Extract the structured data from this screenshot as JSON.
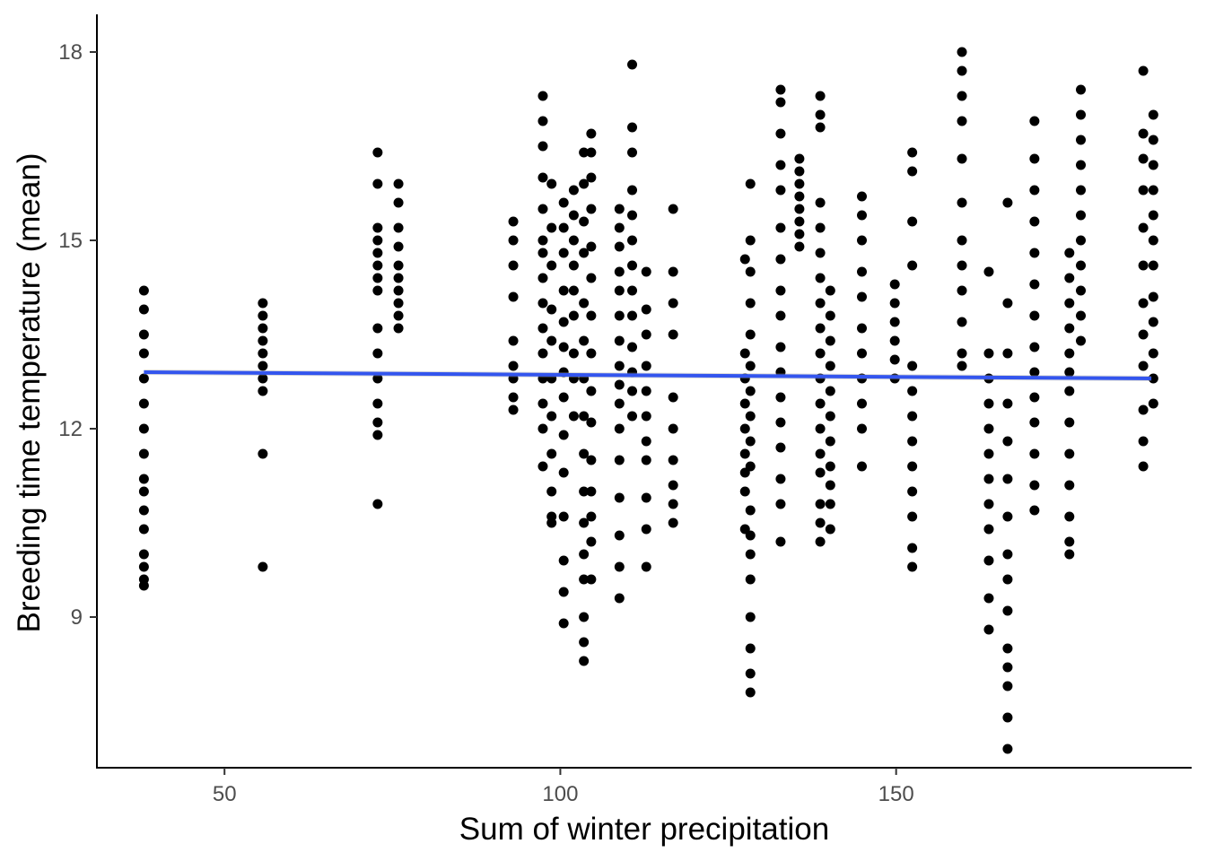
{
  "chart_data": {
    "type": "scatter",
    "title": "",
    "xlabel": "Sum of winter precipitation",
    "ylabel": "Breeding time temperature (mean)",
    "xlim": [
      31,
      194
    ],
    "ylim": [
      6.6,
      18.6
    ],
    "x_ticks": [
      50,
      100,
      150
    ],
    "x_tick_labels": [
      "50",
      "100",
      "150"
    ],
    "y_ticks": [
      9,
      12,
      15,
      18
    ],
    "y_tick_labels": [
      "9",
      "12",
      "15",
      "18"
    ],
    "grid": false,
    "legend": "none",
    "point_color": "#000000",
    "trend_line": {
      "method": "linear",
      "color": "#3355ee",
      "x": [
        38,
        188
      ],
      "y": [
        12.9,
        12.8
      ]
    },
    "groups": [
      {
        "x": 38.0,
        "y": [
          14.2,
          13.9,
          13.5,
          13.2,
          12.8,
          12.4,
          12.0,
          11.6,
          11.2,
          11.0,
          10.7,
          10.4,
          10.0,
          9.8,
          9.6,
          9.5
        ]
      },
      {
        "x": 55.7,
        "y": [
          14.0,
          13.8,
          13.6,
          13.4,
          13.2,
          13.0,
          12.8,
          12.6,
          11.6,
          9.8
        ]
      },
      {
        "x": 72.8,
        "y": [
          16.4,
          15.9,
          15.2,
          15.0,
          14.8,
          14.6,
          14.4,
          14.2,
          13.6,
          13.2,
          12.8,
          12.4,
          12.1,
          11.9,
          10.8
        ]
      },
      {
        "x": 75.9,
        "y": [
          15.9,
          15.6,
          15.2,
          14.9,
          14.6,
          14.4,
          14.2,
          14.0,
          13.8,
          13.6
        ]
      },
      {
        "x": 93.0,
        "y": [
          15.3,
          15.0,
          14.6,
          14.1,
          13.4,
          13.0,
          12.8,
          12.5,
          12.3
        ]
      },
      {
        "x": 97.4,
        "y": [
          17.3,
          16.9,
          16.5,
          16.0,
          15.5,
          15.0,
          14.8,
          14.4,
          14.0,
          13.6,
          13.2,
          12.8,
          12.4,
          12.0,
          11.4
        ]
      },
      {
        "x": 98.7,
        "y": [
          15.9,
          15.2,
          14.6,
          13.9,
          13.4,
          12.8,
          12.2,
          11.6,
          11.0,
          10.6,
          10.5
        ]
      },
      {
        "x": 100.5,
        "y": [
          15.6,
          15.2,
          14.8,
          14.2,
          13.7,
          13.3,
          12.9,
          12.5,
          11.9,
          11.3,
          10.6,
          9.9,
          9.4,
          8.9
        ]
      },
      {
        "x": 102.0,
        "y": [
          15.8,
          15.4,
          15.0,
          14.6,
          14.2,
          13.8,
          13.2,
          12.8,
          12.2
        ]
      },
      {
        "x": 103.5,
        "y": [
          16.4,
          15.9,
          15.3,
          14.8,
          14.0,
          13.4,
          12.8,
          12.2,
          11.6,
          11.0,
          10.5,
          10.0,
          9.6,
          9.0,
          8.6,
          8.3
        ]
      },
      {
        "x": 104.6,
        "y": [
          16.7,
          16.4,
          16.0,
          15.5,
          14.9,
          14.4,
          13.8,
          13.2,
          12.6,
          12.1,
          11.5,
          11.0,
          10.6,
          10.2,
          9.6
        ]
      },
      {
        "x": 108.8,
        "y": [
          15.5,
          15.2,
          14.9,
          14.5,
          14.2,
          13.8,
          13.4,
          13.0,
          12.7,
          12.4,
          12.0,
          11.5,
          10.9,
          10.3,
          9.8,
          9.3
        ]
      },
      {
        "x": 110.7,
        "y": [
          17.8,
          16.8,
          16.4,
          15.8,
          15.4,
          15.0,
          14.6,
          14.2,
          13.8,
          13.3,
          12.9,
          12.6,
          12.2
        ]
      },
      {
        "x": 112.8,
        "y": [
          14.5,
          13.9,
          13.5,
          13.0,
          12.6,
          12.2,
          11.8,
          11.5,
          10.9,
          10.4,
          9.8
        ]
      },
      {
        "x": 116.8,
        "y": [
          15.5,
          14.5,
          14.0,
          13.5,
          12.5,
          12.0,
          11.5,
          11.1,
          10.8,
          10.5
        ]
      },
      {
        "x": 127.5,
        "y": [
          14.7,
          13.2,
          12.8,
          12.4,
          12.0,
          11.6,
          11.3,
          11.0,
          10.4
        ]
      },
      {
        "x": 128.3,
        "y": [
          15.9,
          15.0,
          14.5,
          14.0,
          13.5,
          13.0,
          12.6,
          12.2,
          11.8,
          11.4,
          10.7,
          10.3,
          10.0,
          9.6,
          9.0,
          8.5,
          8.1,
          7.8
        ]
      },
      {
        "x": 132.8,
        "y": [
          17.4,
          17.2,
          16.7,
          16.2,
          15.8,
          15.2,
          14.7,
          14.2,
          13.8,
          13.3,
          12.9,
          12.5,
          12.1,
          11.7,
          11.2,
          10.8,
          10.2
        ]
      },
      {
        "x": 135.6,
        "y": [
          16.3,
          16.1,
          15.9,
          15.7,
          15.5,
          15.3,
          15.1,
          14.9
        ]
      },
      {
        "x": 138.7,
        "y": [
          17.3,
          17.0,
          16.8,
          15.6,
          15.2,
          14.8,
          14.4,
          14.0,
          13.6,
          13.2,
          12.8,
          12.4,
          12.0,
          11.6,
          11.3,
          10.8,
          10.5,
          10.2
        ]
      },
      {
        "x": 140.2,
        "y": [
          14.2,
          13.8,
          13.4,
          13.0,
          12.6,
          12.2,
          11.8,
          11.4,
          11.1,
          10.8,
          10.4
        ]
      },
      {
        "x": 144.9,
        "y": [
          15.7,
          15.4,
          15.0,
          14.5,
          14.1,
          13.6,
          13.2,
          12.8,
          12.4,
          12.0,
          11.4
        ]
      },
      {
        "x": 149.8,
        "y": [
          14.3,
          14.0,
          13.7,
          13.4,
          13.1,
          12.8
        ]
      },
      {
        "x": 152.4,
        "y": [
          16.4,
          16.1,
          15.3,
          14.6,
          13.0,
          12.6,
          12.2,
          11.8,
          11.4,
          11.0,
          10.6,
          10.1,
          9.8
        ]
      },
      {
        "x": 159.8,
        "y": [
          18.0,
          17.7,
          17.3,
          16.9,
          16.3,
          15.6,
          15.0,
          14.6,
          14.2,
          13.7,
          13.2,
          13.0
        ]
      },
      {
        "x": 163.8,
        "y": [
          14.5,
          13.2,
          12.8,
          12.4,
          12.0,
          11.6,
          11.2,
          10.8,
          10.4,
          9.9,
          9.3,
          8.8
        ]
      },
      {
        "x": 166.6,
        "y": [
          15.6,
          14.0,
          13.2,
          12.4,
          11.8,
          11.2,
          10.6,
          10.0,
          9.6,
          9.1,
          8.5,
          8.2,
          7.9,
          7.4,
          6.9
        ]
      },
      {
        "x": 170.6,
        "y": [
          16.9,
          16.3,
          15.8,
          15.3,
          14.8,
          14.3,
          13.8,
          13.3,
          12.9,
          12.5,
          12.1,
          11.6,
          11.1,
          10.7
        ]
      },
      {
        "x": 175.8,
        "y": [
          14.8,
          14.4,
          14.0,
          13.6,
          13.2,
          12.9,
          12.6,
          12.1,
          11.6,
          11.1,
          10.6,
          10.2,
          10.0
        ]
      },
      {
        "x": 177.5,
        "y": [
          17.4,
          17.0,
          16.6,
          16.2,
          15.8,
          15.4,
          15.0,
          14.6,
          14.2,
          13.8,
          13.4
        ]
      },
      {
        "x": 186.8,
        "y": [
          17.7,
          16.7,
          16.3,
          15.8,
          15.2,
          14.6,
          14.0,
          13.5,
          13.0,
          12.3,
          11.8,
          11.4
        ]
      },
      {
        "x": 188.3,
        "y": [
          17.0,
          16.6,
          16.2,
          15.8,
          15.4,
          15.0,
          14.6,
          14.1,
          13.7,
          13.2,
          12.8,
          12.4
        ]
      }
    ]
  }
}
